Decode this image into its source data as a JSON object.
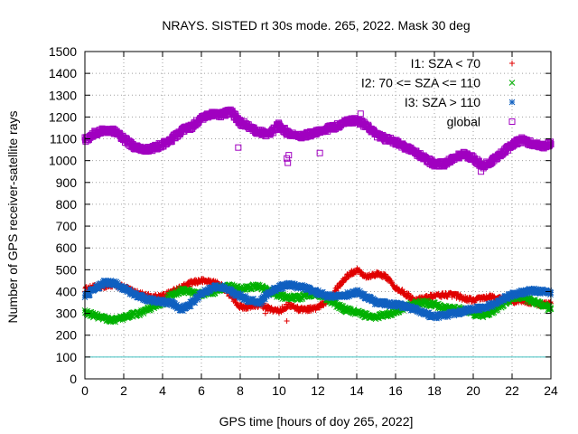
{
  "chart_data": {
    "type": "scatter",
    "title": "NRAYS. SISTED rt 30s mode. 265, 2022. Mask 30 deg",
    "xlabel": "GPS time [hours of doy 265, 2022]",
    "ylabel": "Number of GPS receiver-satellite rays",
    "xlim": [
      0,
      24
    ],
    "ylim": [
      0,
      1500
    ],
    "xticks": [
      "0",
      "2",
      "4",
      "6",
      "8",
      "10",
      "12",
      "14",
      "16",
      "18",
      "20",
      "22",
      "24"
    ],
    "yticks": [
      "0",
      "100",
      "200",
      "300",
      "400",
      "500",
      "600",
      "700",
      "800",
      "900",
      "1000",
      "1100",
      "1200",
      "1300",
      "1400",
      "1500"
    ],
    "grid": true,
    "legend_position": "top-right",
    "reference_line": {
      "y": 100,
      "color": "#40c0c0"
    },
    "series": [
      {
        "name": "I1: SZA < 70",
        "marker": "plus",
        "color": "#e00000",
        "x": [
          0,
          0.5,
          1,
          1.5,
          2,
          2.5,
          3,
          3.5,
          4,
          4.5,
          5,
          5.5,
          6,
          6.5,
          7,
          7.5,
          8,
          8.5,
          9,
          9.5,
          10,
          10.5,
          11,
          11.5,
          12,
          12.5,
          13,
          13.5,
          14,
          14.5,
          15,
          15.5,
          16,
          16.5,
          17,
          17.5,
          18,
          18.5,
          19,
          19.5,
          20,
          20.5,
          21,
          21.5,
          22,
          22.5,
          23,
          23.5,
          24
        ],
        "y": [
          410,
          420,
          425,
          430,
          420,
          400,
          385,
          375,
          380,
          400,
          420,
          440,
          450,
          445,
          430,
          380,
          330,
          330,
          340,
          320,
          310,
          340,
          320,
          320,
          325,
          360,
          420,
          470,
          500,
          470,
          480,
          470,
          420,
          390,
          360,
          370,
          380,
          385,
          385,
          370,
          360,
          370,
          375,
          365,
          355,
          360,
          350,
          340,
          345
        ]
      },
      {
        "name": "I2: 70 <= SZA <= 110",
        "marker": "cross",
        "color": "#00b000",
        "x": [
          0,
          0.5,
          1,
          1.5,
          2,
          2.5,
          3,
          3.5,
          4,
          4.5,
          5,
          5.5,
          6,
          6.5,
          7,
          7.5,
          8,
          8.5,
          9,
          9.5,
          10,
          10.5,
          11,
          11.5,
          12,
          12.5,
          13,
          13.5,
          14,
          14.5,
          15,
          15.5,
          16,
          16.5,
          17,
          17.5,
          18,
          18.5,
          19,
          19.5,
          20,
          20.5,
          21,
          21.5,
          22,
          22.5,
          23,
          23.5,
          24
        ],
        "y": [
          305,
          290,
          275,
          270,
          280,
          295,
          305,
          330,
          350,
          385,
          405,
          400,
          385,
          395,
          415,
          425,
          410,
          420,
          425,
          400,
          380,
          375,
          370,
          385,
          390,
          365,
          335,
          315,
          305,
          290,
          285,
          295,
          305,
          330,
          345,
          350,
          340,
          325,
          320,
          320,
          300,
          290,
          310,
          340,
          370,
          380,
          355,
          340,
          320
        ]
      },
      {
        "name": "I3: SZA > 110",
        "marker": "star",
        "color": "#1060c0",
        "x": [
          0,
          0.5,
          1,
          1.5,
          2,
          2.5,
          3,
          3.5,
          4,
          4.5,
          5,
          5.5,
          6,
          6.5,
          7,
          7.5,
          8,
          8.5,
          9,
          9.5,
          10,
          10.5,
          11,
          11.5,
          12,
          12.5,
          13,
          13.5,
          14,
          14.5,
          15,
          15.5,
          16,
          16.5,
          17,
          17.5,
          18,
          18.5,
          19,
          19.5,
          20,
          20.5,
          21,
          21.5,
          22,
          22.5,
          23,
          23.5,
          24
        ],
        "y": [
          380,
          410,
          440,
          440,
          415,
          390,
          370,
          360,
          355,
          345,
          320,
          345,
          390,
          415,
          425,
          400,
          380,
          360,
          350,
          395,
          420,
          430,
          425,
          410,
          395,
          380,
          375,
          385,
          400,
          375,
          350,
          345,
          340,
          330,
          320,
          300,
          285,
          290,
          300,
          310,
          320,
          325,
          340,
          365,
          385,
          395,
          405,
          400,
          395
        ]
      },
      {
        "name": "global",
        "marker": "square",
        "color": "#a000c0",
        "x": [
          0,
          0.5,
          1,
          1.5,
          2,
          2.5,
          3,
          3.5,
          4,
          4.5,
          5,
          5.5,
          6,
          6.5,
          7,
          7.5,
          8,
          8.5,
          9,
          9.5,
          10,
          10.5,
          11,
          11.5,
          12,
          12.5,
          13,
          13.5,
          14,
          14.5,
          15,
          15.5,
          16,
          16.5,
          17,
          17.5,
          18,
          18.5,
          19,
          19.5,
          20,
          20.5,
          21,
          21.5,
          22,
          22.5,
          23,
          23.5,
          24
        ],
        "y": [
          1095,
          1125,
          1140,
          1135,
          1100,
          1065,
          1050,
          1055,
          1075,
          1100,
          1140,
          1155,
          1190,
          1215,
          1210,
          1225,
          1175,
          1150,
          1130,
          1120,
          1165,
          1120,
          1110,
          1120,
          1130,
          1145,
          1160,
          1180,
          1185,
          1160,
          1120,
          1100,
          1085,
          1060,
          1040,
          1010,
          985,
          985,
          1015,
          1030,
          1010,
          975,
          1000,
          1035,
          1075,
          1095,
          1080,
          1065,
          1075
        ]
      }
    ],
    "outliers": [
      {
        "series": "I1: SZA < 70",
        "x": 10.4,
        "y": 265
      },
      {
        "series": "I1: SZA < 70",
        "x": 9.3,
        "y": 300
      },
      {
        "series": "global",
        "x": 10.4,
        "y": 1010
      },
      {
        "series": "global",
        "x": 10.45,
        "y": 990
      },
      {
        "series": "global",
        "x": 10.5,
        "y": 1025
      },
      {
        "series": "global",
        "x": 7.9,
        "y": 1060
      },
      {
        "series": "global",
        "x": 12.1,
        "y": 1035
      },
      {
        "series": "global",
        "x": 8.2,
        "y": 1180
      },
      {
        "series": "global",
        "x": 20.4,
        "y": 950
      },
      {
        "series": "global",
        "x": 14.2,
        "y": 1215
      }
    ]
  }
}
